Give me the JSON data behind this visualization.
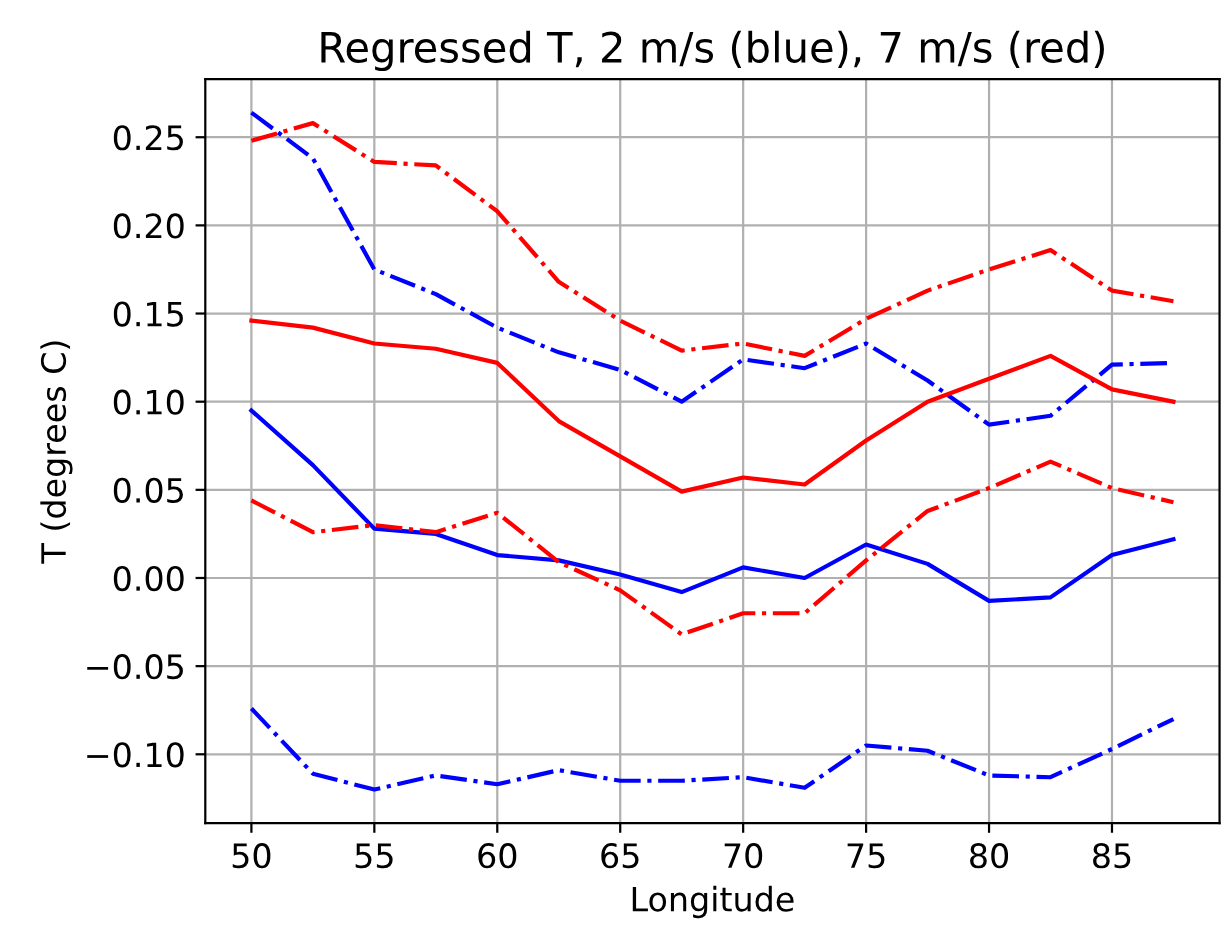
{
  "chart_data": {
    "type": "line",
    "title": "Regressed T, 2 m/s (blue), 7 m/s (red)",
    "xlabel": "Longitude",
    "ylabel": "T (degrees C)",
    "x": [
      50,
      52.5,
      55,
      57.5,
      60,
      62.5,
      65,
      67.5,
      70,
      72.5,
      75,
      77.5,
      80,
      82.5,
      85,
      87.5
    ],
    "series": [
      {
        "color": "#0000ff",
        "line_style": "solid",
        "values": [
          0.095,
          0.064,
          0.028,
          0.025,
          0.013,
          0.01,
          0.002,
          -0.008,
          0.006,
          0.0,
          0.019,
          0.008,
          -0.013,
          -0.011,
          0.013,
          0.022
        ]
      },
      {
        "color": "#0000ff",
        "line_style": "dashdot",
        "values": [
          0.264,
          0.238,
          0.175,
          0.161,
          0.142,
          0.128,
          0.118,
          0.1,
          0.124,
          0.119,
          0.133,
          0.112,
          0.087,
          0.092,
          0.121,
          0.122
        ]
      },
      {
        "color": "#0000ff",
        "line_style": "dashdot",
        "values": [
          -0.074,
          -0.111,
          -0.12,
          -0.112,
          -0.117,
          -0.109,
          -0.115,
          -0.115,
          -0.113,
          -0.119,
          -0.095,
          -0.098,
          -0.112,
          -0.113,
          -0.097,
          -0.08
        ]
      },
      {
        "color": "#ff0000",
        "line_style": "solid",
        "values": [
          0.146,
          0.142,
          0.133,
          0.13,
          0.122,
          0.089,
          0.069,
          0.049,
          0.057,
          0.053,
          0.078,
          0.1,
          0.113,
          0.126,
          0.107,
          0.1
        ]
      },
      {
        "color": "#ff0000",
        "line_style": "dashdot",
        "values": [
          0.248,
          0.258,
          0.236,
          0.234,
          0.208,
          0.168,
          0.146,
          0.129,
          0.133,
          0.126,
          0.147,
          0.163,
          0.175,
          0.186,
          0.163,
          0.157
        ]
      },
      {
        "color": "#ff0000",
        "line_style": "dashdot",
        "values": [
          0.044,
          0.026,
          0.03,
          0.026,
          0.037,
          0.009,
          -0.007,
          -0.032,
          -0.02,
          -0.02,
          0.01,
          0.038,
          0.051,
          0.066,
          0.051,
          0.043
        ]
      }
    ],
    "xlim": [
      48.125,
      89.375
    ],
    "ylim": [
      -0.139,
      0.283
    ],
    "xticks": [
      50,
      55,
      60,
      65,
      70,
      75,
      80,
      85
    ],
    "yticks": [
      {
        "value": -0.1,
        "label": "−0.10"
      },
      {
        "value": -0.05,
        "label": "−0.05"
      },
      {
        "value": 0,
        "label": "0.00"
      },
      {
        "value": 0.05,
        "label": "0.05"
      },
      {
        "value": 0.1,
        "label": "0.10"
      },
      {
        "value": 0.15,
        "label": "0.15"
      },
      {
        "value": 0.2,
        "label": "0.20"
      },
      {
        "value": 0.25,
        "label": "0.25"
      }
    ],
    "grid": true
  }
}
